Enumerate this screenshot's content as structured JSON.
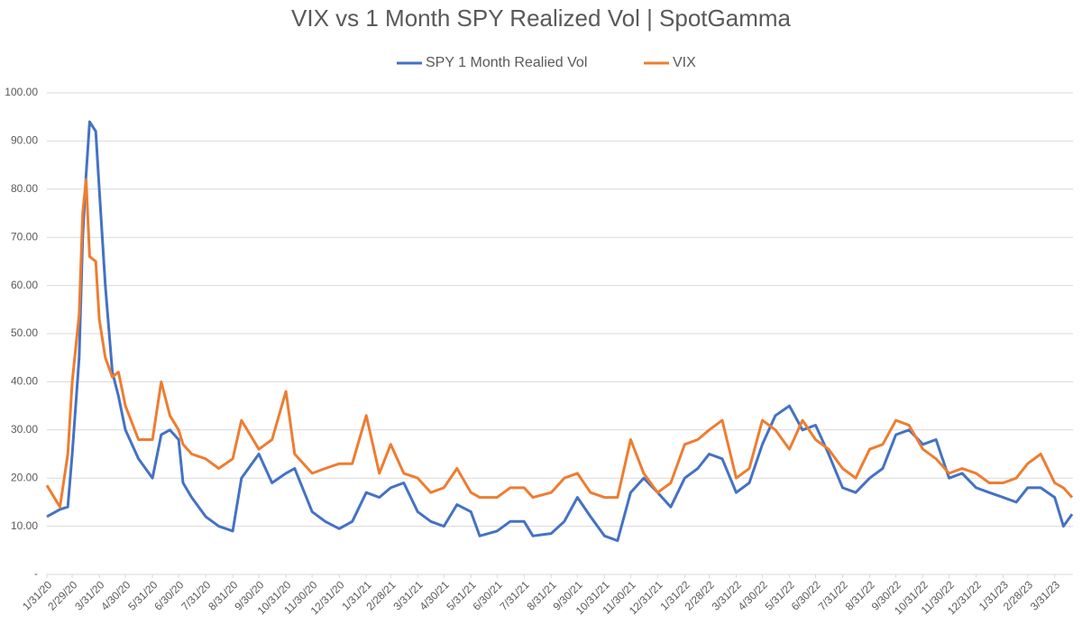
{
  "chart_data": {
    "type": "line",
    "title": "VIX vs 1 Month SPY Realized Vol | SpotGamma",
    "x": [
      "1/31/20",
      "2/15/20",
      "2/24/20",
      "2/29/20",
      "3/8/20",
      "3/12/20",
      "3/16/20",
      "3/20/20",
      "3/27/20",
      "3/31/20",
      "4/7/20",
      "4/15/20",
      "4/22/20",
      "4/30/20",
      "5/15/20",
      "5/31/20",
      "6/10/20",
      "6/20/20",
      "6/30/20",
      "7/5/20",
      "7/15/20",
      "7/31/20",
      "8/15/20",
      "8/31/20",
      "9/10/20",
      "9/30/20",
      "10/15/20",
      "10/31/20",
      "11/10/20",
      "11/30/20",
      "12/15/20",
      "12/31/20",
      "1/15/21",
      "1/31/21",
      "2/15/21",
      "2/28/21",
      "3/15/21",
      "3/31/21",
      "4/15/21",
      "4/30/21",
      "5/15/21",
      "5/31/21",
      "6/10/21",
      "6/30/21",
      "7/15/21",
      "7/31/21",
      "8/10/21",
      "8/31/21",
      "9/15/21",
      "9/30/21",
      "10/15/21",
      "10/31/21",
      "11/15/21",
      "11/30/21",
      "12/15/21",
      "12/31/21",
      "1/15/22",
      "1/31/22",
      "2/15/22",
      "2/28/22",
      "3/15/22",
      "3/31/22",
      "4/15/22",
      "4/30/22",
      "5/15/22",
      "5/31/22",
      "6/15/22",
      "6/30/22",
      "7/15/22",
      "7/31/22",
      "8/15/22",
      "8/31/22",
      "9/15/22",
      "9/30/22",
      "10/15/22",
      "10/31/22",
      "11/15/22",
      "11/30/22",
      "12/15/22",
      "12/31/22",
      "1/15/23",
      "1/31/23",
      "2/15/23",
      "2/28/23",
      "3/15/23",
      "3/31/23",
      "4/10/23",
      "4/20/23"
    ],
    "series": [
      {
        "name": "SPY 1 Month Realied Vol",
        "color": "#4472c4",
        "values": [
          12,
          13.5,
          14,
          25,
          45,
          70,
          83,
          94,
          92,
          80,
          60,
          42,
          37,
          30,
          24,
          20,
          29,
          30,
          28,
          19,
          16,
          12,
          10,
          9,
          20,
          25,
          19,
          21,
          22,
          13,
          11,
          9.5,
          11,
          17,
          16,
          18,
          19,
          13,
          11,
          10,
          14.5,
          13,
          8,
          9,
          11,
          11,
          8,
          8.5,
          11,
          16,
          12,
          8,
          7,
          17,
          20,
          17,
          14,
          20,
          22,
          25,
          24,
          17,
          19,
          27,
          33,
          35,
          30,
          31,
          25,
          18,
          17,
          20,
          22,
          29,
          30,
          27,
          28,
          20,
          21,
          18,
          17,
          16,
          15,
          18,
          18,
          16,
          10,
          12.5
        ]
      },
      {
        "name": "VIX",
        "color": "#ed7d31",
        "values": [
          18.5,
          14,
          25,
          40,
          54,
          75,
          82,
          66,
          65,
          53,
          45,
          41,
          42,
          35,
          28,
          28,
          40,
          33,
          30,
          27,
          25,
          24,
          22,
          24,
          32,
          26,
          28,
          38,
          25,
          21,
          22,
          23,
          23,
          33,
          21,
          27,
          21,
          20,
          17,
          18,
          22,
          17,
          16,
          16,
          18,
          18,
          16,
          17,
          20,
          21,
          17,
          16,
          16,
          28,
          21,
          17,
          19,
          27,
          28,
          30,
          32,
          20,
          22,
          32,
          30,
          26,
          32,
          28,
          26,
          22,
          20,
          26,
          27,
          32,
          31,
          26,
          24,
          21,
          22,
          21,
          19,
          19,
          20,
          23,
          25,
          19,
          18,
          16
        ]
      }
    ],
    "xlim": [
      "1/31/20",
      "4/21/23"
    ],
    "xticks": [
      "1/31/20",
      "2/29/20",
      "3/31/20",
      "4/30/20",
      "5/31/20",
      "6/30/20",
      "7/31/20",
      "8/31/20",
      "9/30/20",
      "10/31/20",
      "11/30/20",
      "12/31/20",
      "1/31/21",
      "2/28/21",
      "3/31/21",
      "4/30/21",
      "5/31/21",
      "6/30/21",
      "7/31/21",
      "8/31/21",
      "9/30/21",
      "10/31/21",
      "11/30/21",
      "12/31/21",
      "1/31/22",
      "2/28/22",
      "3/31/22",
      "4/30/22",
      "5/31/22",
      "6/30/22",
      "7/31/22",
      "8/31/22",
      "9/30/22",
      "10/31/22",
      "11/30/22",
      "12/31/22",
      "1/31/23",
      "2/28/23",
      "3/31/23"
    ],
    "ylim": [
      0,
      100
    ],
    "yticks": [
      {
        "value": 0,
        "label": "-"
      },
      {
        "value": 10,
        "label": "10.00"
      },
      {
        "value": 20,
        "label": "20.00"
      },
      {
        "value": 30,
        "label": "30.00"
      },
      {
        "value": 40,
        "label": "40.00"
      },
      {
        "value": 50,
        "label": "50.00"
      },
      {
        "value": 60,
        "label": "60.00"
      },
      {
        "value": 70,
        "label": "70.00"
      },
      {
        "value": 80,
        "label": "80.00"
      },
      {
        "value": 90,
        "label": "90.00"
      },
      {
        "value": 100,
        "label": "100.00"
      }
    ],
    "grid": true
  }
}
